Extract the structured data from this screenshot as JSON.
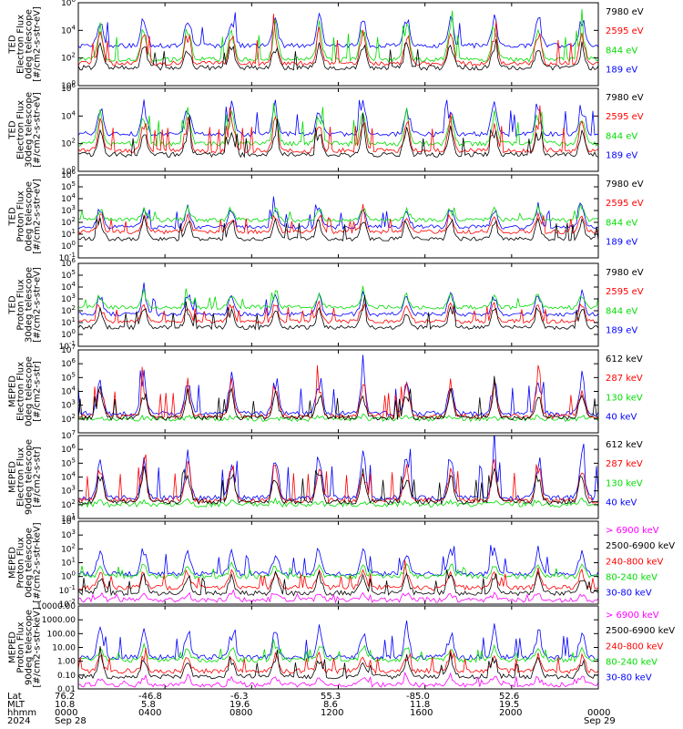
{
  "figure": {
    "colors": {
      "blue": "#0000ff",
      "green": "#00dd00",
      "red": "#ff0000",
      "black": "#000000",
      "magenta": "#ff00ff"
    }
  },
  "chart_data": [
    {
      "type": "line",
      "ylabel": "TED\nElectron Flux\n0deg telescope\n[#/cm2-s-str-eV]",
      "yscale": "log",
      "yticks": [
        "10^0",
        "10^2",
        "10^4",
        "10^6"
      ],
      "ylim": [
        1,
        1000000
      ],
      "series": [
        {
          "name": "7980 eV",
          "color": "#000000",
          "base_exp": 1.3,
          "spike_exp": 3.3
        },
        {
          "name": "2595 eV",
          "color": "#ff0000",
          "base_exp": 1.6,
          "spike_exp": 4.2
        },
        {
          "name": "844 eV",
          "color": "#00dd00",
          "base_exp": 1.9,
          "spike_exp": 4.8
        },
        {
          "name": "189 eV",
          "color": "#0000ff",
          "base_exp": 2.9,
          "spike_exp": 5.4
        }
      ]
    },
    {
      "type": "line",
      "ylabel": "TED\nElectron Flux\n30deg telescope\n[#/cm2-s-str-eV]",
      "yscale": "log",
      "yticks": [
        "10^0",
        "10^2",
        "10^4",
        "10^6"
      ],
      "ylim": [
        1,
        1000000
      ],
      "series": [
        {
          "name": "7980 eV",
          "color": "#000000",
          "base_exp": 1.2,
          "spike_exp": 3.2
        },
        {
          "name": "2595 eV",
          "color": "#ff0000",
          "base_exp": 1.5,
          "spike_exp": 4.1
        },
        {
          "name": "844 eV",
          "color": "#00dd00",
          "base_exp": 2.0,
          "spike_exp": 4.7
        },
        {
          "name": "189 eV",
          "color": "#0000ff",
          "base_exp": 2.7,
          "spike_exp": 5.3
        }
      ]
    },
    {
      "type": "line",
      "ylabel": "TED\nProton Flux\n0deg telescope\n[#/cm2-s-str-eV]",
      "yscale": "log",
      "yticks": [
        "10^-1",
        "10^0",
        "10^1",
        "10^2",
        "10^3",
        "10^4",
        "10^5",
        "10^6"
      ],
      "ylim": [
        0.1,
        1000000
      ],
      "series": [
        {
          "name": "7980 eV",
          "color": "#000000",
          "base_exp": 0.6,
          "spike_exp": 2.6
        },
        {
          "name": "2595 eV",
          "color": "#ff0000",
          "base_exp": 1.2,
          "spike_exp": 2.9
        },
        {
          "name": "844 eV",
          "color": "#00dd00",
          "base_exp": 2.2,
          "spike_exp": 3.4
        },
        {
          "name": "189 eV",
          "color": "#0000ff",
          "base_exp": 1.6,
          "spike_exp": 3.6
        }
      ]
    },
    {
      "type": "line",
      "ylabel": "TED\nProton Flux\n30deg telescope\n[#/cm2-s-str-eV]",
      "yscale": "log",
      "yticks": [
        "10^-1",
        "10^0",
        "10^1",
        "10^2",
        "10^3",
        "10^4",
        "10^5",
        "10^6"
      ],
      "ylim": [
        0.1,
        1000000
      ],
      "series": [
        {
          "name": "7980 eV",
          "color": "#000000",
          "base_exp": 0.6,
          "spike_exp": 2.5
        },
        {
          "name": "2595 eV",
          "color": "#ff0000",
          "base_exp": 1.1,
          "spike_exp": 2.8
        },
        {
          "name": "844 eV",
          "color": "#00dd00",
          "base_exp": 2.3,
          "spike_exp": 3.5
        },
        {
          "name": "189 eV",
          "color": "#0000ff",
          "base_exp": 1.7,
          "spike_exp": 3.7
        }
      ]
    },
    {
      "type": "line",
      "ylabel": "MEPED\nElectron Flux\n0deg telescope\n[#/cm2-s-str]",
      "yscale": "log",
      "yticks": [
        "10^2",
        "10^3",
        "10^4",
        "10^5",
        "10^6",
        "10^7"
      ],
      "ylim": [
        10,
        10000000
      ],
      "series": [
        {
          "name": "612 keV",
          "color": "#000000",
          "base_exp": 2.1,
          "spike_exp": 4.3
        },
        {
          "name": "287 keV",
          "color": "#ff0000",
          "base_exp": 2.2,
          "spike_exp": 5.0
        },
        {
          "name": "130 keV",
          "color": "#00dd00",
          "base_exp": 2.0,
          "spike_exp": 2.2
        },
        {
          "name": "40 keV",
          "color": "#0000ff",
          "base_exp": 2.4,
          "spike_exp": 5.6
        }
      ]
    },
    {
      "type": "line",
      "ylabel": "MEPED\nElectron Flux\n90deg telescope\n[#/cm2-s-str]",
      "yscale": "log",
      "yticks": [
        "10^1",
        "10^2",
        "10^3",
        "10^4",
        "10^5",
        "10^6",
        "10^7"
      ],
      "ylim": [
        10,
        10000000
      ],
      "series": [
        {
          "name": "612 keV",
          "color": "#000000",
          "base_exp": 2.2,
          "spike_exp": 4.8
        },
        {
          "name": "287 keV",
          "color": "#ff0000",
          "base_exp": 2.3,
          "spike_exp": 5.5
        },
        {
          "name": "130 keV",
          "color": "#00dd00",
          "base_exp": 2.0,
          "spike_exp": 2.3
        },
        {
          "name": "40 keV",
          "color": "#0000ff",
          "base_exp": 2.5,
          "spike_exp": 6.1
        }
      ]
    },
    {
      "type": "line",
      "ylabel": "MEPED\nProton Flux\n0deg telescope\n[#/cm2-s-str-keV]",
      "yscale": "log",
      "yticks": [
        "10^-2",
        "10^-1",
        "10^0",
        "10^1",
        "10^2",
        "10^3",
        "10^4"
      ],
      "ylim": [
        0.01,
        10000
      ],
      "series": [
        {
          "name": "> 6900 keV",
          "color": "#ff00ff",
          "base_exp": -1.7,
          "spike_exp": -1.1
        },
        {
          "name": "2500-6900 keV",
          "color": "#000000",
          "base_exp": -1.2,
          "spike_exp": 0.4
        },
        {
          "name": "240-800 keV",
          "color": "#ff0000",
          "base_exp": -0.8,
          "spike_exp": 0.6
        },
        {
          "name": "80-240 keV",
          "color": "#00dd00",
          "base_exp": 0.0,
          "spike_exp": 1.0
        },
        {
          "name": "30-80 keV",
          "color": "#0000ff",
          "base_exp": 0.2,
          "spike_exp": 2.3
        }
      ]
    },
    {
      "type": "line",
      "ylabel": "MEPED\nProton Flux\n90deg telescope\n[#/cm2-s-str-keV]",
      "yscale": "log",
      "yticks": [
        "0.01",
        "0.10",
        "1.00",
        "10.00",
        "100.00",
        "1000.00",
        "10000.00"
      ],
      "ylim": [
        0.01,
        10000
      ],
      "series": [
        {
          "name": "> 6900 keV",
          "color": "#ff00ff",
          "base_exp": -1.7,
          "spike_exp": -1.0
        },
        {
          "name": "2500-6900 keV",
          "color": "#000000",
          "base_exp": -1.1,
          "spike_exp": 0.5
        },
        {
          "name": "240-800 keV",
          "color": "#ff0000",
          "base_exp": -0.7,
          "spike_exp": 0.7
        },
        {
          "name": "80-240 keV",
          "color": "#00dd00",
          "base_exp": 0.1,
          "spike_exp": 1.2
        },
        {
          "name": "30-80 keV",
          "color": "#0000ff",
          "base_exp": 0.3,
          "spike_exp": 2.6
        }
      ]
    }
  ],
  "x_axis": {
    "row_labels": [
      "Lat",
      "MLT",
      "hhmm",
      "2024"
    ],
    "columns": [
      {
        "lat": "76.2",
        "mlt": "10.8",
        "hhmm": "0000",
        "date": "Sep 28"
      },
      {
        "lat": "-46.8",
        "mlt": "5.8",
        "hhmm": "0400",
        "date": ""
      },
      {
        "lat": "-6.3",
        "mlt": "19.6",
        "hhmm": "0800",
        "date": ""
      },
      {
        "lat": "55.3",
        "mlt": "8.6",
        "hhmm": "1200",
        "date": ""
      },
      {
        "lat": "-85.0",
        "mlt": "11.8",
        "hhmm": "1600",
        "date": ""
      },
      {
        "lat": "52.6",
        "mlt": "19.5",
        "hhmm": "2000",
        "date": ""
      },
      {
        "lat": "",
        "mlt": "",
        "hhmm": "0000",
        "date": "Sep 29"
      }
    ]
  }
}
